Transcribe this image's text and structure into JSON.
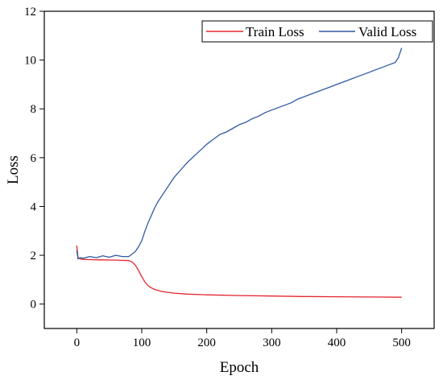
{
  "chart_data": {
    "type": "line",
    "title": "",
    "xlabel": "Epoch",
    "ylabel": "Loss",
    "xlim": [
      -50,
      550
    ],
    "ylim": [
      -1,
      12
    ],
    "x_ticks": [
      0,
      100,
      200,
      300,
      400,
      500
    ],
    "y_ticks": [
      0,
      2,
      4,
      6,
      8,
      10,
      12
    ],
    "grid": false,
    "legend_position": "top-right",
    "series": [
      {
        "name": "Train Loss",
        "color": "#e3262e",
        "x": [
          0,
          2,
          5,
          10,
          20,
          40,
          60,
          80,
          85,
          90,
          95,
          100,
          105,
          110,
          115,
          120,
          130,
          140,
          150,
          170,
          200,
          250,
          300,
          350,
          400,
          450,
          500
        ],
        "y": [
          2.4,
          1.9,
          1.85,
          1.83,
          1.82,
          1.81,
          1.8,
          1.78,
          1.73,
          1.6,
          1.38,
          1.12,
          0.9,
          0.75,
          0.66,
          0.6,
          0.52,
          0.48,
          0.45,
          0.41,
          0.38,
          0.35,
          0.33,
          0.31,
          0.3,
          0.29,
          0.28
        ]
      },
      {
        "name": "Valid Loss",
        "color": "#2e59a3",
        "x": [
          0,
          2,
          5,
          10,
          20,
          30,
          40,
          50,
          60,
          70,
          80,
          85,
          90,
          95,
          100,
          105,
          110,
          115,
          120,
          125,
          130,
          140,
          150,
          160,
          170,
          180,
          190,
          200,
          210,
          220,
          230,
          240,
          250,
          260,
          270,
          280,
          290,
          300,
          310,
          320,
          330,
          340,
          350,
          360,
          370,
          380,
          390,
          400,
          410,
          420,
          430,
          440,
          450,
          460,
          470,
          480,
          490,
          495,
          500
        ],
        "y": [
          2.2,
          1.85,
          1.9,
          1.88,
          1.95,
          1.9,
          1.98,
          1.92,
          2.0,
          1.95,
          1.95,
          2.05,
          2.15,
          2.35,
          2.6,
          3.0,
          3.35,
          3.65,
          3.95,
          4.2,
          4.4,
          4.8,
          5.2,
          5.5,
          5.8,
          6.05,
          6.3,
          6.55,
          6.75,
          6.95,
          7.05,
          7.2,
          7.35,
          7.45,
          7.6,
          7.7,
          7.85,
          7.95,
          8.05,
          8.15,
          8.25,
          8.4,
          8.5,
          8.6,
          8.7,
          8.8,
          8.9,
          9.0,
          9.1,
          9.2,
          9.3,
          9.4,
          9.5,
          9.6,
          9.7,
          9.8,
          9.9,
          10.1,
          10.5
        ]
      }
    ]
  }
}
